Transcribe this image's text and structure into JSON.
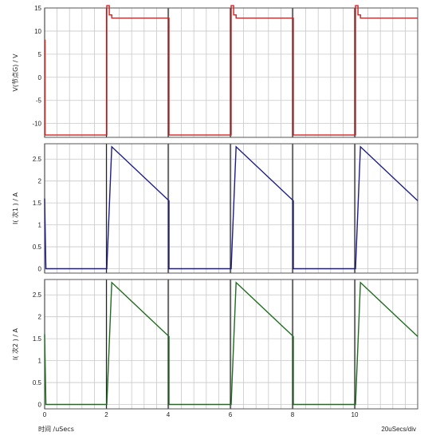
{
  "chart_data": [
    {
      "type": "line",
      "ylabel": "V(节点G) / V",
      "xlim": [
        0,
        15
      ],
      "ylim": [
        -13,
        15
      ],
      "yticks": [
        15,
        10,
        5,
        0,
        -5,
        -10
      ],
      "grid": true,
      "series": [
        {
          "color": "#d42020",
          "x": [
            0,
            0.02,
            0.02,
            0.15,
            2.5,
            2.5,
            2.6,
            2.6,
            2.7,
            2.7,
            5.0,
            5.0,
            7.5,
            7.5,
            7.6,
            7.6,
            7.7,
            7.7,
            10.0,
            10.0,
            12.5,
            12.5,
            12.6,
            12.6,
            12.7,
            12.7,
            15
          ],
          "y": [
            8,
            8,
            -12.5,
            -12.5,
            -12.5,
            15.5,
            15.5,
            13.5,
            13.5,
            12.8,
            12.8,
            -12.5,
            -12.5,
            15.5,
            15.5,
            13.5,
            13.5,
            12.8,
            12.8,
            -12.5,
            -12.5,
            15.5,
            15.5,
            13.5,
            13.5,
            12.8,
            12.8
          ]
        }
      ]
    },
    {
      "type": "line",
      "ylabel": "I(  次1  ) / A",
      "xlim": [
        0,
        15
      ],
      "ylim": [
        -0.1,
        2.85
      ],
      "yticks": [
        2.5,
        2,
        1.5,
        1,
        0.5,
        0
      ],
      "grid": true,
      "series": [
        {
          "color": "#1c1c8c",
          "x": [
            0,
            0.05,
            0.1,
            2.5,
            2.7,
            5.0,
            5.0,
            7.5,
            7.7,
            10.0,
            10.0,
            12.5,
            12.7,
            15
          ],
          "y": [
            1.6,
            0,
            0,
            0,
            2.78,
            1.55,
            0,
            0,
            2.78,
            1.55,
            0,
            0,
            2.78,
            1.55
          ]
        }
      ]
    },
    {
      "type": "line",
      "ylabel": "I(  次2  ) / A",
      "xlabel": "时间  /uSecs",
      "xlim": [
        0,
        15
      ],
      "ylim": [
        -0.1,
        2.85
      ],
      "yticks": [
        2.5,
        2,
        1.5,
        1,
        0.5,
        0
      ],
      "xticks": [
        0,
        2,
        4,
        6,
        8,
        10
      ],
      "xtick_last": "20uSecs/div",
      "grid": true,
      "series": [
        {
          "color": "#1e6e1e",
          "x": [
            0,
            0.05,
            0.1,
            2.5,
            2.7,
            5.0,
            5.0,
            7.5,
            7.7,
            10.0,
            10.0,
            12.5,
            12.7,
            15
          ],
          "y": [
            1.6,
            0,
            0,
            0,
            2.78,
            1.55,
            0,
            0,
            2.78,
            1.55,
            0,
            0,
            2.78,
            1.55
          ]
        }
      ]
    }
  ]
}
